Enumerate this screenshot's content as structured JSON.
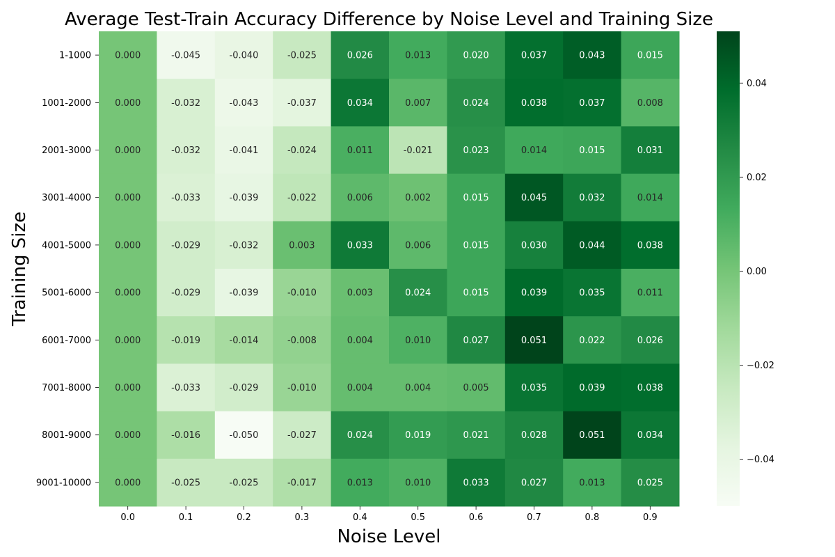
{
  "chart_data": {
    "type": "heatmap",
    "title": "Average Test-Train Accuracy Difference by Noise Level and Training Size",
    "xlabel": "Noise Level",
    "ylabel": "Training Size",
    "x_categories": [
      "0.0",
      "0.1",
      "0.2",
      "0.3",
      "0.4",
      "0.5",
      "0.6",
      "0.7",
      "0.8",
      "0.9"
    ],
    "y_categories": [
      "1-1000",
      "1001-2000",
      "2001-3000",
      "3001-4000",
      "4001-5000",
      "5001-6000",
      "6001-7000",
      "7001-8000",
      "8001-9000",
      "9001-10000"
    ],
    "values": [
      [
        0.0,
        -0.045,
        -0.04,
        -0.025,
        0.026,
        0.013,
        0.02,
        0.037,
        0.043,
        0.015
      ],
      [
        0.0,
        -0.032,
        -0.043,
        -0.037,
        0.034,
        0.007,
        0.024,
        0.038,
        0.037,
        0.008
      ],
      [
        0.0,
        -0.032,
        -0.041,
        -0.024,
        0.011,
        -0.021,
        0.023,
        0.014,
        0.015,
        0.031
      ],
      [
        0.0,
        -0.033,
        -0.039,
        -0.022,
        0.006,
        0.002,
        0.015,
        0.045,
        0.032,
        0.014
      ],
      [
        0.0,
        -0.029,
        -0.032,
        0.003,
        0.033,
        0.006,
        0.015,
        0.03,
        0.044,
        0.038
      ],
      [
        0.0,
        -0.029,
        -0.039,
        -0.01,
        0.003,
        0.024,
        0.015,
        0.039,
        0.035,
        0.011
      ],
      [
        0.0,
        -0.019,
        -0.014,
        -0.008,
        0.004,
        0.01,
        0.027,
        0.051,
        0.022,
        0.026
      ],
      [
        0.0,
        -0.033,
        -0.029,
        -0.01,
        0.004,
        0.004,
        0.005,
        0.035,
        0.039,
        0.038
      ],
      [
        0.0,
        -0.016,
        -0.05,
        -0.027,
        0.024,
        0.019,
        0.021,
        0.028,
        0.051,
        0.034
      ],
      [
        0.0,
        -0.025,
        -0.025,
        -0.017,
        0.013,
        0.01,
        0.033,
        0.027,
        0.013,
        0.025
      ]
    ],
    "value_format": "3 decimals",
    "colormap": "Greens",
    "color_range": [
      -0.05,
      0.051
    ],
    "colorbar_ticks": [
      0.04,
      0.02,
      0.0,
      -0.02,
      -0.04
    ],
    "colorbar_tick_labels": [
      "0.04",
      "0.02",
      "0.00",
      "−0.02",
      "−0.04"
    ],
    "grid": false,
    "legend": "colorbar right"
  }
}
